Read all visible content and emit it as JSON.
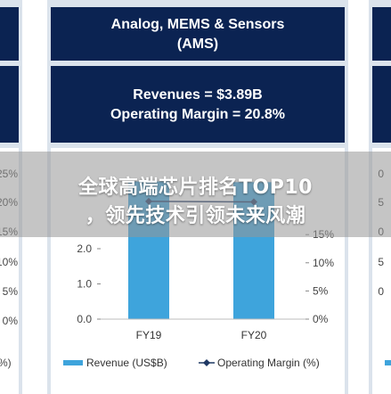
{
  "overlay": {
    "line1": "全球高端芯片排名TOP10",
    "line2": "，领先技术引领未来风潮"
  },
  "segment": {
    "title_line1": "Analog, MEMS & Sensors",
    "title_line2": "(AMS)",
    "revenues": "Revenues = $3.89B",
    "operating_margin": "Operating Margin = 20.8%"
  },
  "colors": {
    "navy": "#0b2352",
    "panel": "#dbe3ec",
    "bar": "#3ea4dc",
    "line": "#1f3864"
  },
  "left_fragment": {
    "ticks": [
      "25%",
      "20%",
      "15%",
      "10%",
      "5%",
      "0%"
    ],
    "legend_fragment": "%)"
  },
  "right_fragment": {
    "ticks": [
      "0",
      "5",
      "0",
      "5",
      "0"
    ]
  },
  "chart_data": {
    "type": "bar",
    "categories": [
      "FY19",
      "FY20"
    ],
    "series": [
      {
        "name": "Revenue (US$B)",
        "values": [
          3.91,
          3.89
        ],
        "axis": "left"
      },
      {
        "name": "Operating Margin (%)",
        "values": [
          20.9,
          20.8
        ],
        "axis": "right",
        "type": "line"
      }
    ],
    "ylim": [
      0,
      4.0
    ],
    "y2lim": [
      0,
      25
    ],
    "y_ticks": [
      "0.0",
      "1.0",
      "2.0"
    ],
    "y2_ticks": [
      "0%",
      "5%",
      "10%",
      "15%"
    ],
    "legend_position": "bottom"
  }
}
